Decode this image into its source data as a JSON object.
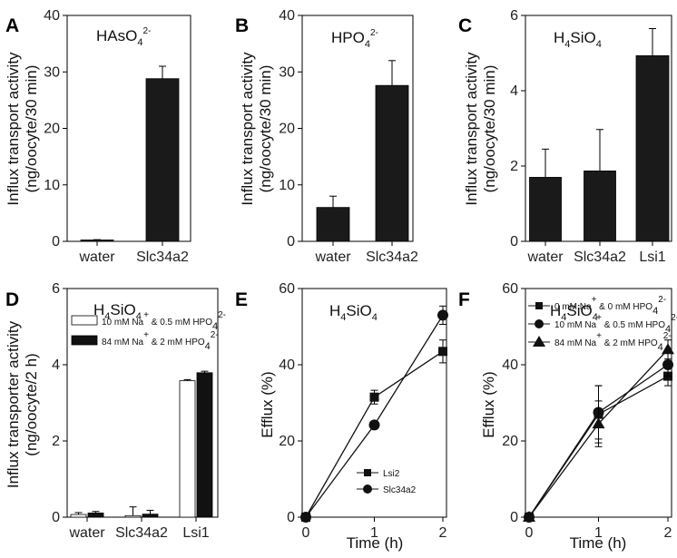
{
  "chart_data": [
    {
      "panel": "A",
      "type": "bar",
      "title_parts": [
        {
          "text": "HAsO",
          "shift": null
        },
        {
          "text": "4",
          "shift": "sub"
        },
        {
          "text": "2-",
          "shift": "sup"
        }
      ],
      "ylabel_lines": [
        "Influx transport activity",
        "(ng/oocyte/30 min)"
      ],
      "ylim": [
        0,
        40
      ],
      "yticks": [
        0,
        10,
        20,
        30,
        40
      ],
      "series": [
        {
          "fill": "#1a1a1a",
          "values": [
            0.2,
            28.8
          ],
          "errors": [
            0.1,
            2.2
          ]
        }
      ],
      "categories": [
        "water",
        "Slc34a2"
      ]
    },
    {
      "panel": "B",
      "type": "bar",
      "title_parts": [
        {
          "text": "HPO",
          "shift": null
        },
        {
          "text": "4",
          "shift": "sub"
        },
        {
          "text": "2-",
          "shift": "sup"
        }
      ],
      "ylabel_lines": [
        "Influx transport activity",
        "(ng/oocyte/30 min)"
      ],
      "ylim": [
        0,
        40
      ],
      "yticks": [
        0,
        10,
        20,
        30,
        40
      ],
      "series": [
        {
          "fill": "#1a1a1a",
          "values": [
            6.0,
            27.6
          ],
          "errors": [
            2.0,
            4.4
          ]
        }
      ],
      "categories": [
        "water",
        "Slc34a2"
      ]
    },
    {
      "panel": "C",
      "type": "bar",
      "title_parts": [
        {
          "text": "H",
          "shift": null
        },
        {
          "text": "4",
          "shift": "sub"
        },
        {
          "text": "SiO",
          "shift": null
        },
        {
          "text": "4",
          "shift": "sub"
        }
      ],
      "ylabel_lines": [
        "Influx transport activity",
        "(ng/oocyte/30 min)"
      ],
      "ylim": [
        0,
        6
      ],
      "yticks": [
        0,
        2,
        4,
        6
      ],
      "series": [
        {
          "fill": "#1a1a1a",
          "values": [
            1.7,
            1.87,
            4.93
          ],
          "errors": [
            0.75,
            1.1,
            0.72
          ]
        }
      ],
      "categories": [
        "water",
        "Slc34a2",
        "Lsi1"
      ]
    },
    {
      "panel": "D",
      "type": "bar",
      "title_parts": [
        {
          "text": "H",
          "shift": null
        },
        {
          "text": "4",
          "shift": "sub"
        },
        {
          "text": "SiO",
          "shift": null
        },
        {
          "text": "4",
          "shift": "sub"
        }
      ],
      "ylabel_lines": [
        "Influx transporter activity",
        "(ng/oocyte/2 h)"
      ],
      "ylim": [
        0,
        6
      ],
      "yticks": [
        0,
        2,
        4,
        6
      ],
      "categories": [
        "water",
        "Slc34a2",
        "Lsi1"
      ],
      "series": [
        {
          "name_parts": [
            {
              "text": "10 mM Na",
              "shift": null
            },
            {
              "text": "+",
              "shift": "sup"
            },
            {
              "text": " & 0.5 mM HPO",
              "shift": null
            },
            {
              "text": "4",
              "shift": "sub"
            },
            {
              "text": "2-",
              "shift": "sup"
            }
          ],
          "fill": "#ffffff",
          "values": [
            0.07,
            0.04,
            3.58
          ],
          "errors": [
            0.05,
            0.23,
            0.03
          ]
        },
        {
          "name_parts": [
            {
              "text": "84 mM Na",
              "shift": null
            },
            {
              "text": "+",
              "shift": "sup"
            },
            {
              "text": " & 2 mM HPO",
              "shift": null
            },
            {
              "text": "4",
              "shift": "sub"
            },
            {
              "text": "2-",
              "shift": "sup"
            }
          ],
          "fill": "#111111",
          "values": [
            0.11,
            0.08,
            3.79
          ],
          "errors": [
            0.04,
            0.1,
            0.04
          ]
        }
      ],
      "legend_position": "top-left"
    },
    {
      "panel": "E",
      "type": "line",
      "title_parts": [
        {
          "text": "H",
          "shift": null
        },
        {
          "text": "4",
          "shift": "sub"
        },
        {
          "text": "SiO",
          "shift": null
        },
        {
          "text": "4",
          "shift": "sub"
        }
      ],
      "ylabel_lines": [
        "Efflux (%)"
      ],
      "xlabel": "Time (h)",
      "xlim": [
        0,
        2
      ],
      "xticks": [
        0,
        1,
        2
      ],
      "ylim": [
        0,
        60
      ],
      "yticks": [
        0,
        20,
        40,
        60
      ],
      "series": [
        {
          "name_parts": [
            {
              "text": "Lsi2",
              "shift": null
            }
          ],
          "marker": "square",
          "x": [
            0,
            1,
            2
          ],
          "y": [
            0,
            31.5,
            43.5
          ],
          "errors": [
            0,
            1.8,
            3.0
          ]
        },
        {
          "name_parts": [
            {
              "text": "Slc34a2",
              "shift": null
            }
          ],
          "marker": "circle",
          "x": [
            0,
            1,
            2
          ],
          "y": [
            0,
            24.2,
            53.0
          ],
          "errors": [
            0,
            0.5,
            2.4
          ]
        }
      ],
      "legend_position": "bottom-right"
    },
    {
      "panel": "F",
      "type": "line",
      "title_parts": [
        {
          "text": "H",
          "shift": null
        },
        {
          "text": "4",
          "shift": "sub"
        },
        {
          "text": "SiO",
          "shift": null
        },
        {
          "text": "4",
          "shift": "sub"
        }
      ],
      "ylabel_lines": [
        "Efflux (%)"
      ],
      "xlabel": "Time (h)",
      "xlim": [
        0,
        2
      ],
      "xticks": [
        0,
        1,
        2
      ],
      "ylim": [
        0,
        60
      ],
      "yticks": [
        0,
        20,
        40,
        60
      ],
      "series": [
        {
          "name_parts": [
            {
              "text": "0 mM Na",
              "shift": null
            },
            {
              "text": "+",
              "shift": "sup"
            },
            {
              "text": " & 0 mM HPO",
              "shift": null
            },
            {
              "text": "4",
              "shift": "sub"
            },
            {
              "text": "2-",
              "shift": "sup"
            }
          ],
          "marker": "square",
          "x": [
            0,
            1,
            2
          ],
          "y": [
            0,
            27.0,
            37.0
          ],
          "errors": [
            0,
            7.5,
            2.5
          ]
        },
        {
          "name_parts": [
            {
              "text": "10 mM Na",
              "shift": null
            },
            {
              "text": "+",
              "shift": "sup"
            },
            {
              "text": " & 0.5 mM HPO",
              "shift": null
            },
            {
              "text": "4",
              "shift": "sub"
            },
            {
              "text": "2-",
              "shift": "sup"
            }
          ],
          "marker": "circle",
          "x": [
            0,
            1,
            2
          ],
          "y": [
            0,
            27.5,
            40.0
          ],
          "errors": [
            0,
            7.0,
            3.0
          ]
        },
        {
          "name_parts": [
            {
              "text": "84 mM Na",
              "shift": null
            },
            {
              "text": "+",
              "shift": "sup"
            },
            {
              "text": " & 2 mM HPO",
              "shift": null
            },
            {
              "text": "4",
              "shift": "sub"
            },
            {
              "text": "2-",
              "shift": "sup"
            }
          ],
          "marker": "triangle",
          "x": [
            0,
            1,
            2
          ],
          "y": [
            0,
            24.5,
            44.0
          ],
          "errors": [
            0,
            6.0,
            2.5
          ]
        }
      ],
      "legend_position": "top-left"
    }
  ]
}
